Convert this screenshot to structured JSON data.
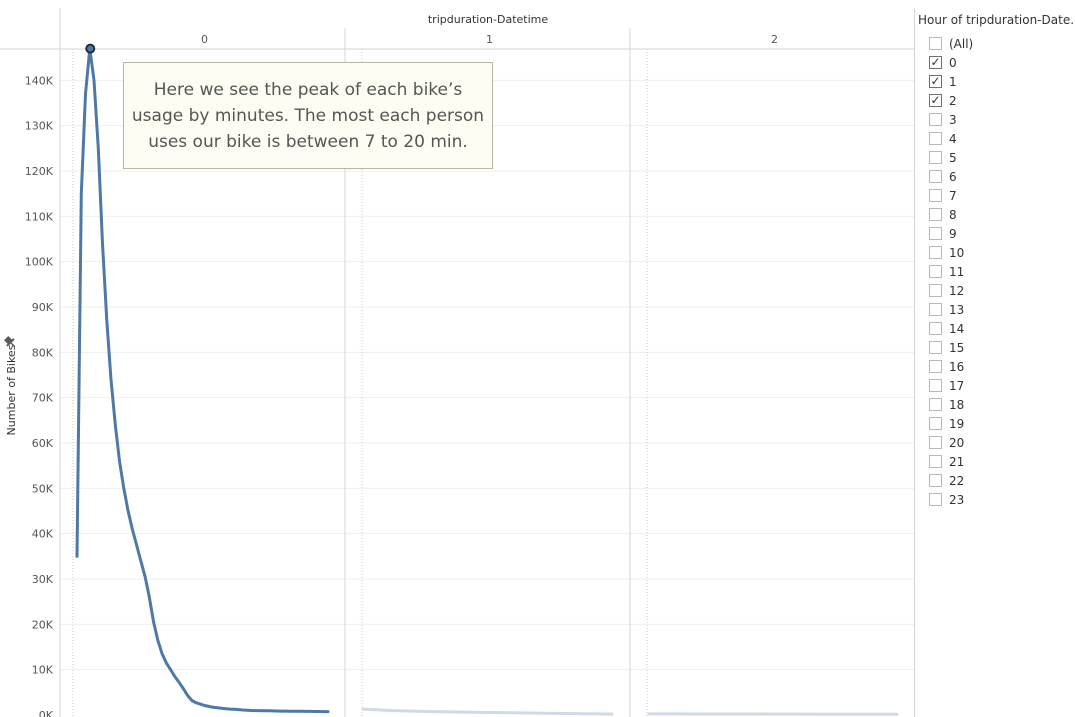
{
  "chart_data": {
    "type": "line",
    "title": "tripduration-Datetime",
    "ylabel": "Number of Bikes",
    "xlabel": "",
    "ylim": [
      0,
      150000
    ],
    "yticks": [
      0,
      10000,
      20000,
      30000,
      40000,
      50000,
      60000,
      70000,
      80000,
      90000,
      100000,
      110000,
      120000,
      130000,
      140000
    ],
    "ytick_labels": [
      "0K",
      "10K",
      "20K",
      "30K",
      "40K",
      "50K",
      "60K",
      "70K",
      "80K",
      "90K",
      "100K",
      "110K",
      "120K",
      "130K",
      "140K"
    ],
    "panels": [
      {
        "label": "0",
        "x_minutes": [
          0,
          1,
          2,
          3,
          4,
          5,
          6,
          7,
          8,
          9,
          10,
          11,
          12,
          13,
          14,
          15,
          16,
          17,
          18,
          19,
          20,
          21,
          22,
          23,
          24,
          25,
          26,
          27,
          28,
          29,
          30,
          31,
          32,
          33,
          34,
          35,
          36,
          37,
          38,
          39,
          40,
          41,
          42,
          43,
          44,
          45,
          46,
          47,
          48,
          49,
          50,
          51,
          52,
          53,
          54,
          55,
          56,
          57,
          58,
          59
        ],
        "values": [
          35000,
          115000,
          137000,
          147000,
          140000,
          125000,
          104000,
          87000,
          74000,
          64000,
          56000,
          50000,
          45000,
          41000,
          37500,
          34000,
          30500,
          26000,
          20500,
          16500,
          13500,
          11500,
          10000,
          8500,
          7200,
          5800,
          4300,
          3200,
          2700,
          2400,
          2100,
          1900,
          1700,
          1600,
          1500,
          1400,
          1300,
          1250,
          1200,
          1100,
          1050,
          1000,
          980,
          960,
          940,
          920,
          900,
          880,
          860,
          850,
          840,
          830,
          820,
          810,
          800,
          790,
          780,
          770,
          760,
          750
        ],
        "peak": {
          "minute": 3,
          "value": 147000
        }
      },
      {
        "label": "1",
        "values": [
          1300,
          1150,
          1000,
          900,
          820,
          760,
          700,
          650,
          600,
          560,
          520,
          480,
          440,
          400,
          360,
          320,
          280,
          240,
          200
        ]
      },
      {
        "label": "2",
        "values": [
          250,
          240,
          230,
          220,
          210,
          200,
          190,
          180,
          170,
          160,
          150
        ]
      }
    ],
    "colors": {
      "line": "#4e79a7",
      "faded_line": "#cfdae6",
      "peak_marker": "#1f2d3d"
    }
  },
  "annotation": {
    "text": "Here we see the peak of each bike’s usage by minutes. The most each person uses our bike is between 7 to 20 min."
  },
  "filter": {
    "title": "Hour of tripduration-Date..",
    "items": [
      {
        "label": "(All)",
        "checked": false
      },
      {
        "label": "0",
        "checked": true
      },
      {
        "label": "1",
        "checked": true
      },
      {
        "label": "2",
        "checked": true
      },
      {
        "label": "3",
        "checked": false
      },
      {
        "label": "4",
        "checked": false
      },
      {
        "label": "5",
        "checked": false
      },
      {
        "label": "6",
        "checked": false
      },
      {
        "label": "7",
        "checked": false
      },
      {
        "label": "8",
        "checked": false
      },
      {
        "label": "9",
        "checked": false
      },
      {
        "label": "10",
        "checked": false
      },
      {
        "label": "11",
        "checked": false
      },
      {
        "label": "12",
        "checked": false
      },
      {
        "label": "13",
        "checked": false
      },
      {
        "label": "14",
        "checked": false
      },
      {
        "label": "15",
        "checked": false
      },
      {
        "label": "16",
        "checked": false
      },
      {
        "label": "17",
        "checked": false
      },
      {
        "label": "18",
        "checked": false
      },
      {
        "label": "19",
        "checked": false
      },
      {
        "label": "20",
        "checked": false
      },
      {
        "label": "21",
        "checked": false
      },
      {
        "label": "22",
        "checked": false
      },
      {
        "label": "23",
        "checked": false
      }
    ]
  },
  "icons": {
    "pin": "pin-icon",
    "check": "check-icon"
  }
}
